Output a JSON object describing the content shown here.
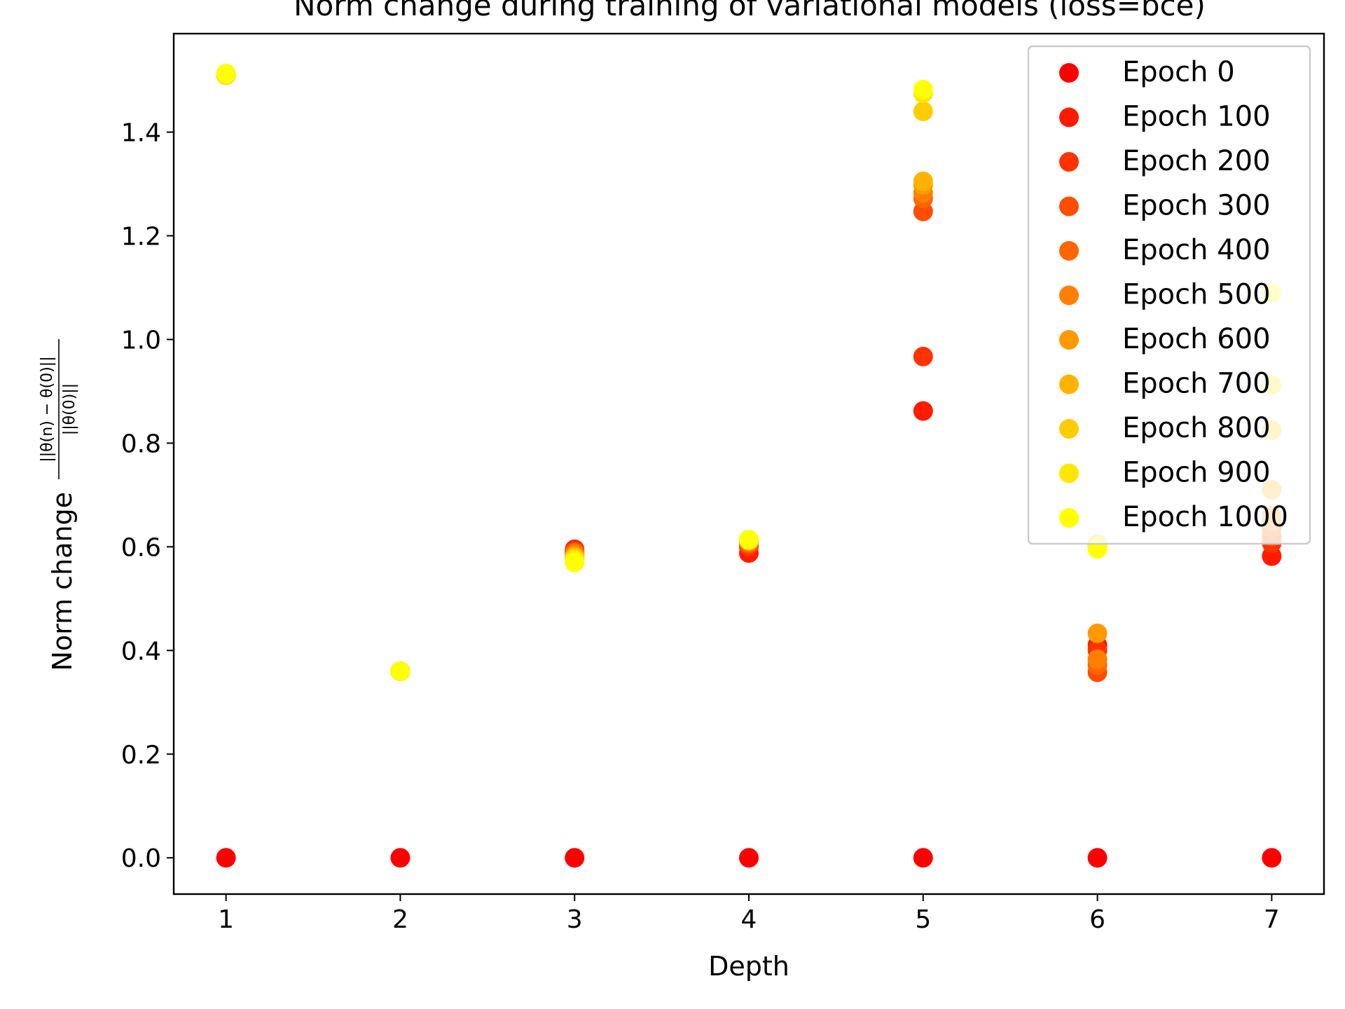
{
  "chart_data": {
    "type": "scatter",
    "title": "Norm change during training of variational models (loss=bce)",
    "xlabel": "Depth",
    "ylabel": "Norm change",
    "ylabel_fraction": {
      "numerator": "||θ(n) − θ(0)||",
      "denominator": "||θ(0)||"
    },
    "xlim": [
      0.7,
      7.3
    ],
    "ylim": [
      -0.07,
      1.59
    ],
    "x_ticks": [
      1,
      2,
      3,
      4,
      5,
      6,
      7
    ],
    "y_ticks": [
      0.0,
      0.2,
      0.4,
      0.6,
      0.8,
      1.0,
      1.2,
      1.4
    ],
    "x_tick_labels": [
      "1",
      "2",
      "3",
      "4",
      "5",
      "6",
      "7"
    ],
    "y_tick_labels": [
      "0.0",
      "0.2",
      "0.4",
      "0.6",
      "0.8",
      "1.0",
      "1.2",
      "1.4"
    ],
    "grid": false,
    "legend_position": "top-right",
    "x": [
      1,
      2,
      3,
      4,
      5,
      6,
      7
    ],
    "series": [
      {
        "name": "Epoch 0",
        "color": "#ff0000",
        "values": [
          0.0,
          0.0,
          0.0,
          0.0,
          0.0,
          0.0,
          0.0
        ]
      },
      {
        "name": "Epoch 100",
        "color": "#ff1a00",
        "values": [
          1.51,
          0.36,
          0.595,
          0.588,
          0.862,
          0.41,
          0.582
        ]
      },
      {
        "name": "Epoch 200",
        "color": "#ff3300",
        "values": [
          1.51,
          0.36,
          0.592,
          0.6,
          0.967,
          0.4,
          0.607
        ]
      },
      {
        "name": "Epoch 300",
        "color": "#ff4d00",
        "values": [
          1.51,
          0.36,
          0.59,
          0.605,
          1.247,
          0.358,
          0.62
        ]
      },
      {
        "name": "Epoch 400",
        "color": "#ff6600",
        "values": [
          1.51,
          0.36,
          0.588,
          0.608,
          1.272,
          0.372,
          0.635
        ]
      },
      {
        "name": "Epoch 500",
        "color": "#ff8000",
        "values": [
          1.51,
          0.36,
          0.585,
          0.61,
          1.283,
          0.383,
          0.648
        ]
      },
      {
        "name": "Epoch 600",
        "color": "#ff9900",
        "values": [
          1.51,
          0.36,
          0.582,
          0.612,
          1.298,
          0.433,
          0.66
        ]
      },
      {
        "name": "Epoch 700",
        "color": "#ffb300",
        "values": [
          1.51,
          0.36,
          0.58,
          0.612,
          1.305,
          0.6,
          0.71
        ]
      },
      {
        "name": "Epoch 800",
        "color": "#ffcc00",
        "values": [
          1.51,
          0.36,
          0.578,
          0.613,
          1.44,
          0.605,
          0.825
        ]
      },
      {
        "name": "Epoch 900",
        "color": "#ffe600",
        "values": [
          1.51,
          0.36,
          0.575,
          0.613,
          1.475,
          0.6,
          0.912
        ]
      },
      {
        "name": "Epoch 1000",
        "color": "#ffff00",
        "values": [
          1.513,
          0.36,
          0.57,
          0.614,
          1.482,
          0.596,
          1.09
        ]
      }
    ]
  }
}
